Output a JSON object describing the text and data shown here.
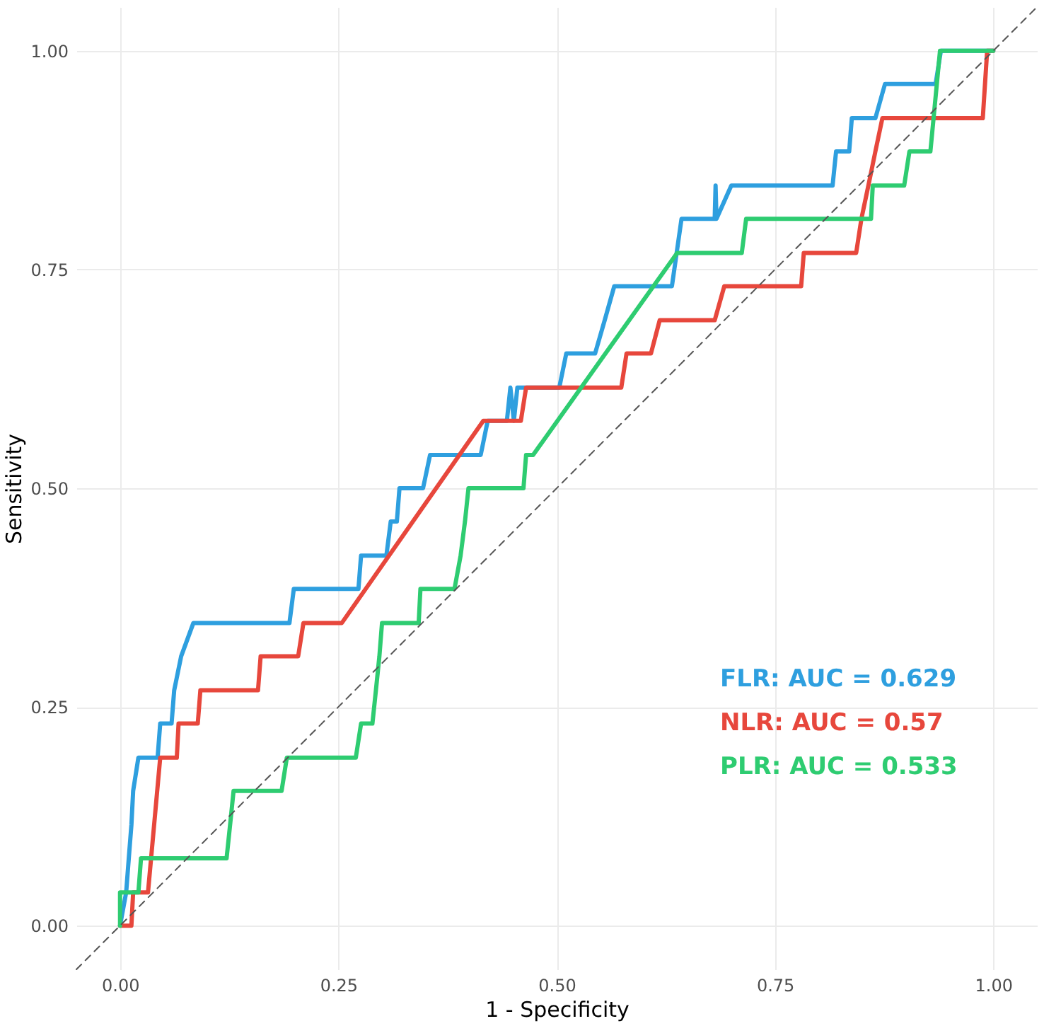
{
  "chart_data": {
    "type": "line",
    "xlabel": "1 - Specificity",
    "ylabel": "Sensitivity",
    "xlim": [
      -0.05,
      1.05
    ],
    "ylim": [
      -0.05,
      1.05
    ],
    "xticks": [
      {
        "value": 0,
        "label": "0.00"
      },
      {
        "value": 0.25,
        "label": "0.25"
      },
      {
        "value": 0.5,
        "label": "0.50"
      },
      {
        "value": 0.75,
        "label": "0.75"
      },
      {
        "value": 1,
        "label": "1.00"
      }
    ],
    "yticks": [
      {
        "value": 0,
        "label": "0.00"
      },
      {
        "value": 0.25,
        "label": "0.25"
      },
      {
        "value": 0.5,
        "label": "0.50"
      },
      {
        "value": 0.75,
        "label": "0.75"
      },
      {
        "value": 1,
        "label": "1.00"
      }
    ],
    "grid": true,
    "legend": "bottom right",
    "series": [
      {
        "name": "FLR: AUC = 0.629",
        "color": "#2e9fdf",
        "x": [
          0,
          0.007,
          0.01,
          0.013,
          0.015,
          0.021,
          0.043,
          0.046,
          0.059,
          0.062,
          0.07,
          0.084,
          0.194,
          0.199,
          0.273,
          0.276,
          0.305,
          0.31,
          0.317,
          0.32,
          0.347,
          0.355,
          0.413,
          0.421,
          0.443,
          0.447,
          0.451,
          0.455,
          0.503,
          0.511,
          0.544,
          0.555,
          0.566,
          0.632,
          0.643,
          0.681,
          0.682,
          0.683,
          0.7,
          0.816,
          0.82,
          0.835,
          0.838,
          0.865,
          0.876,
          0.934,
          0.94,
          1
        ],
        "values": [
          0,
          0.038,
          0.077,
          0.115,
          0.154,
          0.192,
          0.192,
          0.231,
          0.231,
          0.269,
          0.308,
          0.346,
          0.346,
          0.385,
          0.385,
          0.423,
          0.423,
          0.462,
          0.462,
          0.5,
          0.5,
          0.538,
          0.538,
          0.577,
          0.577,
          0.615,
          0.577,
          0.615,
          0.615,
          0.654,
          0.654,
          0.692,
          0.731,
          0.731,
          0.808,
          0.808,
          0.846,
          0.808,
          0.846,
          0.846,
          0.885,
          0.885,
          0.923,
          0.923,
          0.962,
          0.962,
          1,
          1
        ]
      },
      {
        "name": "NLR: AUC = 0.57",
        "color": "#e7473c",
        "x": [
          0,
          0.013,
          0.015,
          0.032,
          0.046,
          0.065,
          0.067,
          0.089,
          0.092,
          0.158,
          0.161,
          0.204,
          0.21,
          0.254,
          0.416,
          0.459,
          0.465,
          0.574,
          0.58,
          0.608,
          0.618,
          0.681,
          0.692,
          0.78,
          0.783,
          0.843,
          0.849,
          0.857,
          0.865,
          0.873,
          0.988,
          0.993,
          1
        ],
        "values": [
          0,
          0,
          0.038,
          0.038,
          0.192,
          0.192,
          0.231,
          0.231,
          0.269,
          0.269,
          0.308,
          0.308,
          0.346,
          0.346,
          0.577,
          0.577,
          0.615,
          0.615,
          0.654,
          0.654,
          0.692,
          0.692,
          0.731,
          0.731,
          0.769,
          0.769,
          0.808,
          0.846,
          0.885,
          0.923,
          0.923,
          1,
          1
        ]
      },
      {
        "name": "PLR: AUC = 0.533",
        "color": "#2ecc71",
        "x": [
          0,
          0,
          0.021,
          0.024,
          0.122,
          0.126,
          0.13,
          0.185,
          0.191,
          0.27,
          0.276,
          0.289,
          0.293,
          0.297,
          0.3,
          0.342,
          0.344,
          0.383,
          0.39,
          0.395,
          0.399,
          0.462,
          0.465,
          0.473,
          0.638,
          0.712,
          0.717,
          0.86,
          0.862,
          0.898,
          0.904,
          0.928,
          0.939,
          1
        ],
        "values": [
          0,
          0.038,
          0.038,
          0.077,
          0.077,
          0.115,
          0.154,
          0.154,
          0.192,
          0.192,
          0.231,
          0.231,
          0.269,
          0.308,
          0.346,
          0.346,
          0.385,
          0.385,
          0.423,
          0.462,
          0.5,
          0.5,
          0.538,
          0.538,
          0.769,
          0.769,
          0.808,
          0.808,
          0.846,
          0.846,
          0.885,
          0.885,
          1,
          1
        ]
      },
      {
        "type": "line",
        "color": "#555555",
        "line_style": "dashed",
        "x": [
          -0.05,
          1.05
        ],
        "values": [
          -0.05,
          1.05
        ]
      }
    ]
  }
}
